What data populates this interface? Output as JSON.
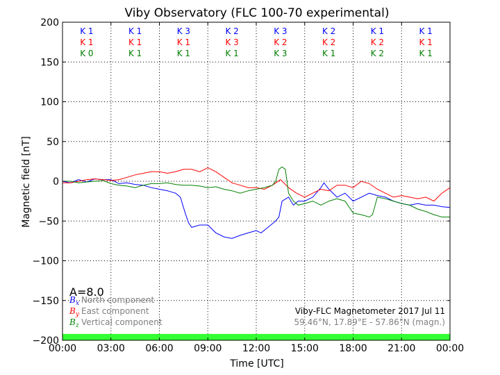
{
  "chart_data": {
    "type": "line",
    "title": "Viby Observatory (FLC 100-70 experimental)",
    "xlabel": "Time [UTC]",
    "ylabel": "Magnetic field [nT]",
    "xlim": [
      0,
      24
    ],
    "ylim": [
      -200,
      200
    ],
    "x_ticks": [
      0,
      3,
      6,
      9,
      12,
      15,
      18,
      21,
      24
    ],
    "x_tick_labels": [
      "00:00",
      "03:00",
      "06:00",
      "09:00",
      "12:00",
      "15:00",
      "18:00",
      "21:00",
      "00:00"
    ],
    "y_ticks": [
      -200,
      -150,
      -100,
      -50,
      0,
      50,
      100,
      150,
      200
    ],
    "y_tick_labels": [
      "−200",
      "−150",
      "−100",
      "−50",
      "0",
      "50",
      "100",
      "150",
      "200"
    ],
    "grid": true,
    "k_index_rows": [
      {
        "color": "#0000ff",
        "labels": [
          "K 1",
          "K 1",
          "K 3",
          "K 2",
          "K 3",
          "K 2",
          "K 1",
          "K 1"
        ]
      },
      {
        "color": "#ff0000",
        "labels": [
          "K 1",
          "K 1",
          "K 1",
          "K 3",
          "K 2",
          "K 2",
          "K 2",
          "K 1"
        ]
      },
      {
        "color": "#008000",
        "labels": [
          "K 0",
          "K 1",
          "K 1",
          "K 1",
          "K 3",
          "K 1",
          "K 2",
          "K 1"
        ]
      }
    ],
    "a_index": "A=8.0",
    "legend": {
      "placement": "lower-left",
      "entries": [
        {
          "symbol": "B",
          "subscript": "x",
          "label": "North component",
          "color": "#0000ff"
        },
        {
          "symbol": "B",
          "subscript": "y",
          "label": "East component",
          "color": "#ff0000"
        },
        {
          "symbol": "B",
          "subscript": "z",
          "label": "Vertical component",
          "color": "#008000"
        }
      ]
    },
    "info": {
      "line1": "Viby-FLC Magnetometer 2017 Jul 11",
      "line2": "59.46°N, 17.89°E - 57.86°N (magn.)"
    },
    "activity_band": {
      "color": "#33ff33",
      "from": -200,
      "to": -192
    },
    "series": [
      {
        "name": "North component",
        "color": "#0000ff",
        "x": [
          0,
          0.5,
          1,
          1.5,
          2,
          2.5,
          3,
          3.5,
          4,
          4.5,
          5,
          5.5,
          6,
          6.5,
          7,
          7.3,
          7.6,
          7.8,
          8,
          8.5,
          9,
          9.5,
          10,
          10.5,
          11,
          11.5,
          12,
          12.3,
          12.6,
          12.9,
          13.2,
          13.4,
          13.6,
          14,
          14.3,
          14.6,
          15,
          15.5,
          16,
          16.2,
          16.5,
          17,
          17.5,
          18,
          18.5,
          19,
          19.5,
          20,
          20.5,
          21,
          21.5,
          22,
          22.5,
          23,
          23.5,
          24
        ],
        "y": [
          0,
          -2,
          2,
          -1,
          3,
          2,
          2,
          -3,
          -2,
          -4,
          -5,
          -8,
          -10,
          -12,
          -15,
          -20,
          -40,
          -52,
          -58,
          -55,
          -55,
          -65,
          -70,
          -72,
          -68,
          -65,
          -62,
          -65,
          -60,
          -55,
          -50,
          -45,
          -25,
          -20,
          -30,
          -25,
          -25,
          -20,
          -8,
          -2,
          -10,
          -20,
          -15,
          -25,
          -20,
          -15,
          -18,
          -20,
          -25,
          -28,
          -30,
          -28,
          -30,
          -30,
          -32,
          -33
        ]
      },
      {
        "name": "East component",
        "color": "#ff0000",
        "x": [
          0,
          0.5,
          1,
          1.5,
          2,
          2.5,
          3,
          3.5,
          4,
          4.5,
          5,
          5.5,
          6,
          6.5,
          7,
          7.5,
          8,
          8.5,
          9,
          9.5,
          10,
          10.5,
          11,
          11.5,
          12,
          12.5,
          13,
          13.5,
          14,
          14.5,
          15,
          15.5,
          16,
          16.5,
          17,
          17.5,
          18,
          18.5,
          19,
          19.5,
          20,
          20.5,
          21,
          21.5,
          22,
          22.5,
          23,
          23.5,
          24
        ],
        "y": [
          -2,
          -2,
          0,
          2,
          3,
          2,
          1,
          2,
          5,
          8,
          10,
          12,
          12,
          10,
          12,
          15,
          15,
          12,
          17,
          12,
          5,
          -2,
          -5,
          -8,
          -8,
          -10,
          -5,
          2,
          -8,
          -15,
          -20,
          -15,
          -10,
          -12,
          -5,
          -5,
          -8,
          0,
          -3,
          -10,
          -15,
          -20,
          -18,
          -20,
          -22,
          -20,
          -25,
          -15,
          -8
        ]
      },
      {
        "name": "Vertical component",
        "color": "#008000",
        "x": [
          0,
          0.5,
          1,
          1.5,
          2,
          2.5,
          3,
          3.5,
          4,
          4.5,
          5,
          5.5,
          6,
          6.5,
          7,
          7.5,
          8,
          8.5,
          9,
          9.5,
          10,
          10.5,
          11,
          11.5,
          12,
          12.5,
          13,
          13.2,
          13.4,
          13.6,
          13.8,
          14,
          14.3,
          14.6,
          15,
          15.5,
          16,
          16.5,
          17,
          17.5,
          18,
          18.5,
          19,
          19.2,
          19.5,
          20,
          20.5,
          21,
          21.5,
          22,
          22.5,
          23,
          23.5,
          24
        ],
        "y": [
          0,
          0,
          -2,
          -1,
          0,
          1,
          -3,
          -5,
          -6,
          -8,
          -5,
          -3,
          -3,
          -2,
          -4,
          -5,
          -5,
          -6,
          -8,
          -7,
          -10,
          -12,
          -15,
          -12,
          -10,
          -8,
          -5,
          0,
          15,
          18,
          15,
          -15,
          -25,
          -30,
          -28,
          -25,
          -30,
          -25,
          -22,
          -25,
          -40,
          -42,
          -45,
          -42,
          -20,
          -22,
          -25,
          -28,
          -30,
          -35,
          -38,
          -42,
          -45,
          -45
        ]
      }
    ]
  }
}
